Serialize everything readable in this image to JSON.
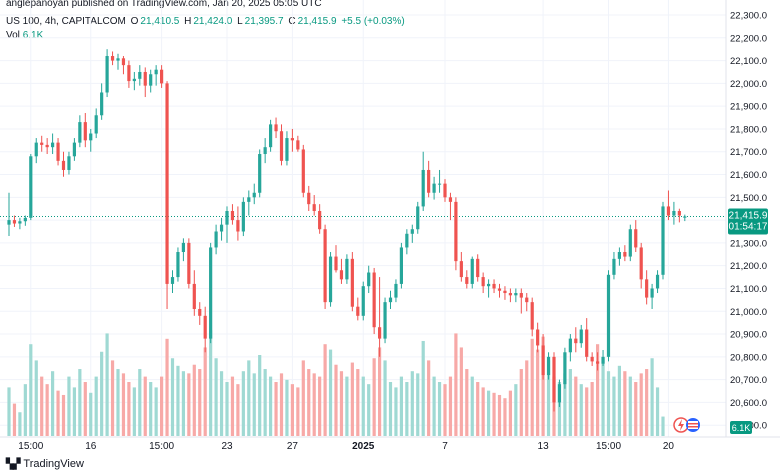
{
  "header": {
    "publisher_line": "anglepanoyan published on TradingView.com, Jan 20, 2025 05:05 UTC"
  },
  "legend": {
    "symbol": "US 100, 4h, CAPITALCOM",
    "open_label": "O",
    "open": "21,410.5",
    "high_label": "H",
    "high": "21,424.0",
    "low_label": "L",
    "low": "21,395.7",
    "close_label": "C",
    "close": "21,415.9",
    "change": "+5.5 (+0.03%)"
  },
  "volume": {
    "label": "Vol",
    "value": "6.1K"
  },
  "price_tag": {
    "price": "21,415.9",
    "countdown": "01:54:17",
    "price_value": 21415.9
  },
  "volume_tag": "6.1K",
  "footer": {
    "brand": "TradingView"
  },
  "colors": {
    "up": "#26a69a",
    "down": "#ef5350",
    "vol_up": "#9fd9d3",
    "vol_down": "#f7a9a7",
    "tag": "#089981"
  },
  "chart_data": {
    "type": "candlestick",
    "ylim": [
      20400,
      22300
    ],
    "y_ticks": [
      20500,
      20600,
      20700,
      20800,
      20900,
      21000,
      21100,
      21200,
      21300,
      21400,
      21500,
      21600,
      21700,
      21800,
      21900,
      22000,
      22100,
      22200,
      22300
    ],
    "y_tick_labels": [
      "20,500.0",
      "20,600.0",
      "20,700.0",
      "20,800.0",
      "20,900.0",
      "21,000.0",
      "21,100.0",
      "21,200.0",
      "21,300.0",
      "21,400.0",
      "21,500.0",
      "21,600.0",
      "21,700.0",
      "21,800.0",
      "21,900.0",
      "22,000.0",
      "22,100.0",
      "22,200.0",
      "22,300.0"
    ],
    "x_tick_labels": [
      {
        "label": "15:00",
        "index": 4,
        "bold": false
      },
      {
        "label": "16",
        "index": 15,
        "bold": false
      },
      {
        "label": "15:00",
        "index": 28,
        "bold": false
      },
      {
        "label": "23",
        "index": 40,
        "bold": false
      },
      {
        "label": "27",
        "index": 52,
        "bold": false
      },
      {
        "label": "2025",
        "index": 65,
        "bold": true
      },
      {
        "label": "7",
        "index": 80,
        "bold": false
      },
      {
        "label": "13",
        "index": 98,
        "bold": false
      },
      {
        "label": "15:00",
        "index": 110,
        "bold": false
      },
      {
        "label": "20",
        "index": 121,
        "bold": false
      }
    ],
    "candles": [
      [
        21380,
        21520,
        21330,
        21400
      ],
      [
        21400,
        21420,
        21370,
        21385
      ],
      [
        21385,
        21410,
        21360,
        21395
      ],
      [
        21395,
        21420,
        21375,
        21410
      ],
      [
        21410,
        21690,
        21400,
        21680
      ],
      [
        21680,
        21760,
        21650,
        21740
      ],
      [
        21740,
        21770,
        21700,
        21730
      ],
      [
        21730,
        21760,
        21690,
        21720
      ],
      [
        21720,
        21780,
        21690,
        21740
      ],
      [
        21740,
        21760,
        21640,
        21660
      ],
      [
        21660,
        21700,
        21590,
        21620
      ],
      [
        21620,
        21700,
        21600,
        21680
      ],
      [
        21680,
        21760,
        21660,
        21740
      ],
      [
        21740,
        21860,
        21720,
        21830
      ],
      [
        21830,
        21870,
        21720,
        21750
      ],
      [
        21750,
        21800,
        21700,
        21780
      ],
      [
        21780,
        21890,
        21760,
        21860
      ],
      [
        21860,
        22000,
        21840,
        21960
      ],
      [
        21960,
        22150,
        21940,
        22120
      ],
      [
        22120,
        22140,
        22080,
        22100
      ],
      [
        22100,
        22130,
        22060,
        22110
      ],
      [
        22110,
        22120,
        22040,
        22080
      ],
      [
        22080,
        22100,
        21980,
        22010
      ],
      [
        22010,
        22050,
        21970,
        22020
      ],
      [
        22020,
        22080,
        21990,
        22050
      ],
      [
        22050,
        22070,
        21940,
        21990
      ],
      [
        21990,
        22060,
        21960,
        22040
      ],
      [
        22040,
        22080,
        21990,
        22060
      ],
      [
        22060,
        22080,
        21980,
        22000
      ],
      [
        22000,
        22010,
        21010,
        21120
      ],
      [
        21120,
        21180,
        21080,
        21150
      ],
      [
        21150,
        21280,
        21130,
        21260
      ],
      [
        21260,
        21320,
        21220,
        21300
      ],
      [
        21300,
        21320,
        21100,
        21120
      ],
      [
        21120,
        21180,
        20980,
        21010
      ],
      [
        21010,
        21040,
        20940,
        20980
      ],
      [
        20980,
        21020,
        20820,
        20880
      ],
      [
        20880,
        21300,
        20860,
        21280
      ],
      [
        21280,
        21380,
        21250,
        21350
      ],
      [
        21350,
        21410,
        21310,
        21380
      ],
      [
        21380,
        21460,
        21300,
        21440
      ],
      [
        21440,
        21470,
        21380,
        21400
      ],
      [
        21400,
        21460,
        21310,
        21350
      ],
      [
        21350,
        21500,
        21330,
        21480
      ],
      [
        21480,
        21530,
        21420,
        21500
      ],
      [
        21500,
        21560,
        21470,
        21520
      ],
      [
        21520,
        21710,
        21500,
        21690
      ],
      [
        21690,
        21760,
        21650,
        21720
      ],
      [
        21720,
        21840,
        21700,
        21820
      ],
      [
        21820,
        21850,
        21760,
        21790
      ],
      [
        21790,
        21820,
        21640,
        21660
      ],
      [
        21660,
        21790,
        21640,
        21760
      ],
      [
        21760,
        21800,
        21700,
        21750
      ],
      [
        21750,
        21770,
        21700,
        21710
      ],
      [
        21710,
        21730,
        21500,
        21520
      ],
      [
        21520,
        21550,
        21440,
        21470
      ],
      [
        21470,
        21510,
        21420,
        21440
      ],
      [
        21440,
        21470,
        21340,
        21360
      ],
      [
        21360,
        21380,
        21010,
        21040
      ],
      [
        21040,
        21260,
        21020,
        21240
      ],
      [
        21240,
        21290,
        21170,
        21180
      ],
      [
        21180,
        21230,
        21120,
        21140
      ],
      [
        21140,
        21250,
        21120,
        21230
      ],
      [
        21230,
        21260,
        21000,
        21020
      ],
      [
        21020,
        21060,
        20960,
        20980
      ],
      [
        20980,
        21130,
        20960,
        21110
      ],
      [
        21110,
        21200,
        21080,
        21170
      ],
      [
        21170,
        21190,
        20900,
        20930
      ],
      [
        20930,
        21150,
        20800,
        20880
      ],
      [
        20880,
        21060,
        20860,
        21040
      ],
      [
        21040,
        21090,
        21010,
        21060
      ],
      [
        21060,
        21140,
        21040,
        21120
      ],
      [
        21120,
        21300,
        21100,
        21280
      ],
      [
        21280,
        21360,
        21250,
        21340
      ],
      [
        21340,
        21380,
        21300,
        21360
      ],
      [
        21360,
        21480,
        21340,
        21460
      ],
      [
        21460,
        21700,
        21440,
        21620
      ],
      [
        21620,
        21660,
        21500,
        21520
      ],
      [
        21520,
        21590,
        21490,
        21560
      ],
      [
        21560,
        21620,
        21520,
        21560
      ],
      [
        21560,
        21580,
        21480,
        21500
      ],
      [
        21500,
        21520,
        21400,
        21480
      ],
      [
        21480,
        21500,
        21180,
        21220
      ],
      [
        21220,
        21260,
        21130,
        21150
      ],
      [
        21150,
        21180,
        21100,
        21120
      ],
      [
        21120,
        21240,
        21100,
        21230
      ],
      [
        21230,
        21250,
        21130,
        21150
      ],
      [
        21150,
        21170,
        21080,
        21110
      ],
      [
        21110,
        21140,
        21060,
        21120
      ],
      [
        21120,
        21140,
        21080,
        21100
      ],
      [
        21100,
        21120,
        21060,
        21090
      ],
      [
        21090,
        21110,
        21050,
        21080
      ],
      [
        21080,
        21100,
        21040,
        21070
      ],
      [
        21070,
        21100,
        21040,
        21080
      ],
      [
        21080,
        21100,
        20990,
        21060
      ],
      [
        21060,
        21080,
        21000,
        21040
      ],
      [
        21040,
        21060,
        20890,
        20920
      ],
      [
        20920,
        20950,
        20820,
        20850
      ],
      [
        20850,
        20900,
        20700,
        20720
      ],
      [
        20720,
        20820,
        20700,
        20800
      ],
      [
        20800,
        20820,
        20560,
        20600
      ],
      [
        20600,
        20700,
        20580,
        20680
      ],
      [
        20680,
        20840,
        20660,
        20820
      ],
      [
        20820,
        20900,
        20780,
        20880
      ],
      [
        20880,
        20930,
        20820,
        20860
      ],
      [
        20860,
        20940,
        20840,
        20920
      ],
      [
        20920,
        20970,
        20780,
        20800
      ],
      [
        20800,
        20820,
        20760,
        20780
      ],
      [
        20780,
        20820,
        20740,
        20770
      ],
      [
        20770,
        20830,
        20760,
        20800
      ],
      [
        20800,
        21180,
        20780,
        21160
      ],
      [
        21160,
        21260,
        21140,
        21230
      ],
      [
        21230,
        21280,
        21200,
        21260
      ],
      [
        21260,
        21290,
        21220,
        21240
      ],
      [
        21240,
        21380,
        21220,
        21360
      ],
      [
        21360,
        21400,
        21260,
        21280
      ],
      [
        21280,
        21300,
        21100,
        21140
      ],
      [
        21140,
        21180,
        21030,
        21060
      ],
      [
        21060,
        21120,
        21010,
        21100
      ],
      [
        21100,
        21180,
        21080,
        21160
      ],
      [
        21160,
        21480,
        21140,
        21460
      ],
      [
        21460,
        21530,
        21400,
        21420
      ],
      [
        21420,
        21480,
        21380,
        21440
      ],
      [
        21440,
        21450,
        21390,
        21420
      ],
      [
        21410.5,
        21424.0,
        21395.7,
        21415.9
      ]
    ],
    "volume_units": "relative (max = 1)",
    "volumes": [
      0.45,
      0.3,
      0.22,
      0.48,
      0.85,
      0.7,
      0.55,
      0.48,
      0.6,
      0.42,
      0.38,
      0.55,
      0.45,
      0.62,
      0.5,
      0.4,
      0.55,
      0.78,
      0.95,
      0.7,
      0.62,
      0.58,
      0.5,
      0.45,
      0.62,
      0.55,
      0.5,
      0.45,
      0.55,
      0.9,
      0.72,
      0.65,
      0.6,
      0.58,
      0.66,
      0.62,
      0.82,
      0.98,
      0.72,
      0.6,
      0.5,
      0.55,
      0.48,
      0.6,
      0.7,
      0.58,
      0.75,
      0.62,
      0.55,
      0.5,
      0.58,
      0.52,
      0.48,
      0.45,
      0.7,
      0.62,
      0.58,
      0.55,
      0.85,
      0.8,
      0.66,
      0.6,
      0.55,
      0.68,
      0.62,
      0.55,
      0.48,
      0.72,
      0.82,
      0.7,
      0.5,
      0.45,
      0.55,
      0.5,
      0.6,
      0.58,
      0.88,
      0.7,
      0.55,
      0.5,
      0.48,
      0.55,
      0.95,
      0.82,
      0.62,
      0.55,
      0.5,
      0.45,
      0.42,
      0.4,
      0.38,
      0.35,
      0.42,
      0.48,
      0.62,
      0.7,
      0.9,
      0.8,
      0.92,
      0.7,
      0.55,
      0.5,
      0.58,
      0.62,
      0.55,
      0.48,
      0.45,
      0.5,
      0.85,
      0.72,
      0.6,
      0.55,
      0.65,
      0.6,
      0.55,
      0.5,
      0.58,
      0.62,
      0.72,
      0.45,
      0.18
    ]
  }
}
